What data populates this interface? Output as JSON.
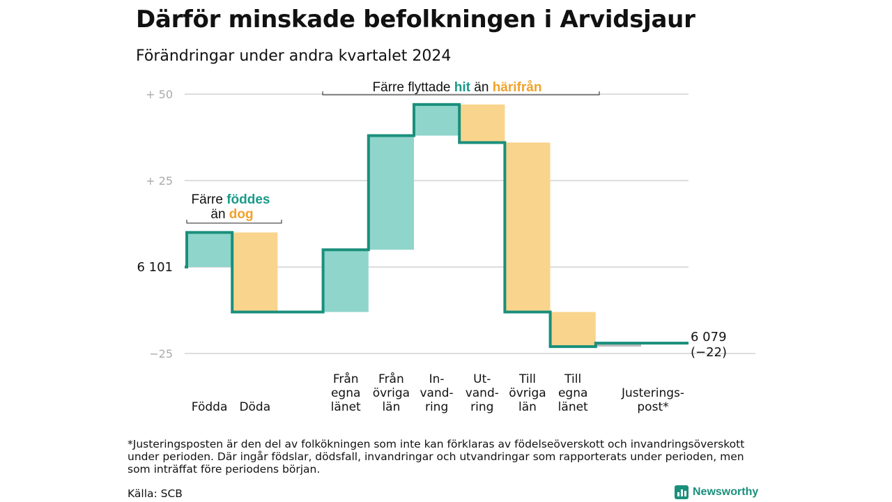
{
  "title": "Därför minskade befolkningen i Arvidsjaur",
  "subtitle": "Förändringar under andra kvartalet 2024",
  "colors": {
    "increase": "#8fd5cb",
    "decrease": "#f9d48c",
    "line": "#1a8f7c",
    "accent_green": "#1a9a8a",
    "accent_orange": "#f0a22a",
    "grid": "#dddddd",
    "adjustment": "#bbbbbb"
  },
  "chart_data": {
    "type": "waterfall",
    "start_value": 6101,
    "end_value": 6079,
    "end_change": -22,
    "ylim": [
      -25,
      50
    ],
    "grid": true,
    "y_ticks": [
      {
        "value": 50,
        "label": "+  50"
      },
      {
        "value": 25,
        "label": "+  25"
      },
      {
        "value": 0,
        "label": "6  101"
      },
      {
        "value": -25,
        "label": "−25"
      }
    ],
    "steps": [
      {
        "label": [
          "",
          "",
          "Födda"
        ],
        "change": 10,
        "kind": "increase"
      },
      {
        "label": [
          "",
          "",
          "Döda"
        ],
        "change": -23,
        "kind": "decrease"
      },
      {
        "label": [
          "",
          "",
          ""
        ],
        "change": 0,
        "kind": "none"
      },
      {
        "label": [
          "Från",
          "egna",
          "länet"
        ],
        "change": 18,
        "kind": "increase"
      },
      {
        "label": [
          "Från",
          "övriga",
          "län"
        ],
        "change": 33,
        "kind": "increase"
      },
      {
        "label": [
          "In-",
          "vand-",
          "ring"
        ],
        "change": 9,
        "kind": "increase"
      },
      {
        "label": [
          "Ut-",
          "vand-",
          "ring"
        ],
        "change": -11,
        "kind": "decrease"
      },
      {
        "label": [
          "Till",
          "övriga",
          "län"
        ],
        "change": -49,
        "kind": "decrease"
      },
      {
        "label": [
          "Till",
          "egna",
          "länet"
        ],
        "change": -10,
        "kind": "decrease"
      },
      {
        "label": [
          "",
          "Justerings-",
          "post*"
        ],
        "change": 1,
        "kind": "adjustment"
      }
    ],
    "end_label": [
      "6 079",
      "(−22)"
    ],
    "annotations": {
      "births": {
        "prefix": "Färre",
        "green": "föddes",
        "mid": "än",
        "orange": "dog"
      },
      "migration": {
        "prefix": "Färre flyttade",
        "green": "hit",
        "mid": "än",
        "orange": "härifrån"
      }
    }
  },
  "footnote": "*Justeringsposten är den del av folkökningen som inte kan förklaras av födelseöverskott och invandringsöverskott under perioden. Där ingår födslar, dödsfall, invandringar och utvandringar som rapporterats under perioden, men som inträffat före periodens början.",
  "source": "Källa: SCB",
  "brand": "Newsworthy"
}
